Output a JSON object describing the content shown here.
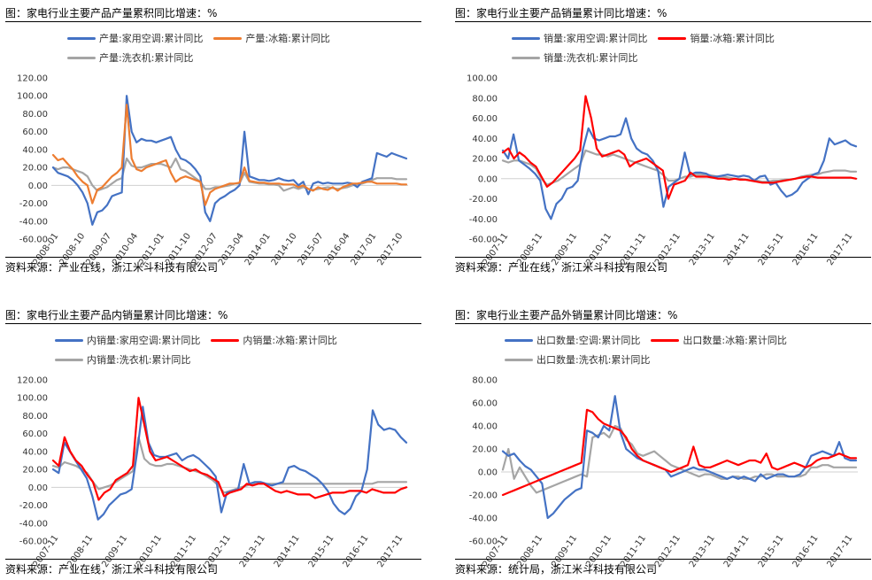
{
  "chart_data": [
    {
      "type": "line",
      "title": "图：家电行业主要产品产量累积同比增速：%",
      "source": "资料来源：产业在线，浙江米斗科技有限公司",
      "ylim": [
        -60,
        120
      ],
      "yticks": [
        "120.00",
        "100.00",
        "80.00",
        "60.00",
        "40.00",
        "20.00",
        "0.00",
        "-20.00",
        "-40.00",
        "-60.00"
      ],
      "xticks": [
        "2008-01",
        "2008-10",
        "2009-07",
        "2010-04",
        "2011-01",
        "2011-10",
        "2012-07",
        "2013-04",
        "2014-01",
        "2014-10",
        "2015-07",
        "2016-04",
        "2017-01",
        "2017-10"
      ],
      "series": [
        {
          "name": "产量:家用空调:累计同比",
          "color": "#4472C4",
          "values": [
            20,
            14,
            12,
            10,
            6,
            0,
            -8,
            -20,
            -44,
            -30,
            -28,
            -22,
            -12,
            -10,
            -8,
            100,
            60,
            48,
            52,
            50,
            50,
            48,
            50,
            52,
            54,
            40,
            30,
            28,
            24,
            18,
            10,
            -30,
            -40,
            -20,
            -15,
            -12,
            -8,
            -5,
            0,
            60,
            10,
            8,
            6,
            6,
            5,
            6,
            8,
            6,
            5,
            6,
            0,
            4,
            -10,
            2,
            4,
            2,
            3,
            2,
            2,
            2,
            3,
            2,
            -2,
            4,
            6,
            8,
            36,
            34,
            32,
            36,
            34,
            32,
            30
          ]
        },
        {
          "name": "产量:冰箱:累计同比",
          "color": "#ED7D31",
          "values": [
            34,
            28,
            30,
            24,
            18,
            10,
            4,
            0,
            -20,
            -5,
            -2,
            4,
            10,
            14,
            20,
            90,
            30,
            18,
            16,
            20,
            22,
            24,
            26,
            28,
            14,
            4,
            8,
            10,
            8,
            6,
            4,
            -22,
            -8,
            -4,
            -2,
            0,
            2,
            2,
            3,
            20,
            5,
            4,
            3,
            3,
            2,
            2,
            2,
            1,
            1,
            1,
            -2,
            0,
            -4,
            -6,
            -2,
            -4,
            -5,
            -2,
            -6,
            -2,
            0,
            2,
            2,
            3,
            4,
            4,
            2,
            2,
            2,
            2,
            2,
            1,
            1
          ]
        },
        {
          "name": "产量:洗衣机:累计同比",
          "color": "#A5A5A5",
          "values": [
            20,
            18,
            20,
            20,
            18,
            16,
            14,
            10,
            0,
            -6,
            -4,
            -2,
            2,
            6,
            8,
            30,
            22,
            20,
            20,
            22,
            24,
            24,
            24,
            22,
            20,
            30,
            18,
            16,
            12,
            8,
            4,
            -4,
            -4,
            -2,
            -2,
            -1,
            0,
            2,
            2,
            14,
            4,
            3,
            2,
            2,
            1,
            1,
            0,
            -6,
            -4,
            -2,
            -4,
            -2,
            -4,
            -5,
            -4,
            -3,
            -2,
            -3,
            -4,
            -3,
            -2,
            0,
            1,
            2,
            4,
            6,
            8,
            8,
            8,
            8,
            7,
            7,
            7
          ]
        }
      ]
    },
    {
      "type": "line",
      "title": "图：家电行业主要产品销量累计同比增速：%",
      "source": "资料来源：产业在线，浙江米斗科技有限公司",
      "ylim": [
        -60,
        100
      ],
      "yticks": [
        "100.00",
        "80.00",
        "60.00",
        "40.00",
        "20.00",
        "0.00",
        "-20.00",
        "-40.00",
        "-60.00"
      ],
      "xticks": [
        "2007-11",
        "2008-11",
        "2009-11",
        "2010-11",
        "2011-11",
        "2012-11",
        "2013-11",
        "2014-11",
        "2015-11",
        "2016-11",
        "2017-11"
      ],
      "series": [
        {
          "name": "销量:家用空调:累计同比",
          "color": "#4472C4",
          "values": [
            28,
            20,
            44,
            18,
            14,
            10,
            5,
            -2,
            -30,
            -40,
            -25,
            -20,
            -10,
            -8,
            -2,
            30,
            50,
            40,
            38,
            40,
            42,
            42,
            44,
            60,
            40,
            30,
            26,
            24,
            18,
            8,
            -28,
            -8,
            -4,
            0,
            26,
            4,
            6,
            6,
            5,
            2,
            2,
            3,
            4,
            3,
            2,
            3,
            2,
            -2,
            2,
            3,
            -6,
            -4,
            -12,
            -18,
            -16,
            -12,
            -4,
            0,
            4,
            6,
            18,
            40,
            34,
            36,
            38,
            34,
            32
          ]
        },
        {
          "name": "销量:冰箱:累计同比",
          "color": "#FF0000",
          "values": [
            26,
            30,
            20,
            26,
            22,
            16,
            12,
            2,
            -8,
            -4,
            2,
            8,
            14,
            20,
            28,
            82,
            60,
            30,
            22,
            24,
            26,
            28,
            24,
            12,
            16,
            18,
            20,
            16,
            12,
            8,
            -20,
            -6,
            -4,
            -2,
            6,
            2,
            2,
            2,
            1,
            0,
            0,
            -1,
            0,
            -1,
            -1,
            -2,
            -3,
            -4,
            -4,
            -4,
            -3,
            -2,
            -1,
            0,
            1,
            2,
            2,
            1,
            1,
            1,
            1,
            1,
            1,
            1,
            0
          ]
        },
        {
          "name": "销量:洗衣机:累计同比",
          "color": "#A5A5A5",
          "values": [
            18,
            16,
            18,
            18,
            16,
            14,
            10,
            0,
            -6,
            -4,
            -2,
            2,
            6,
            10,
            14,
            28,
            26,
            24,
            24,
            22,
            24,
            22,
            20,
            18,
            16,
            14,
            12,
            10,
            8,
            4,
            -2,
            -2,
            0,
            2,
            2,
            4,
            4,
            4,
            3,
            2,
            2,
            1,
            0,
            0,
            -1,
            -2,
            -2,
            -3,
            -3,
            -2,
            -2,
            -1,
            -1,
            0,
            2,
            3,
            4,
            4,
            6,
            7,
            8,
            8,
            8,
            7,
            7
          ]
        }
      ]
    },
    {
      "type": "line",
      "title": "图：家电行业主要产品内销量累计同比增速：%",
      "source": "资料来源：产业在线，浙江米斗科技有限公司",
      "ylim": [
        -60,
        120
      ],
      "yticks": [
        "120.00",
        "100.00",
        "80.00",
        "60.00",
        "40.00",
        "20.00",
        "0.00",
        "-20.00",
        "-40.00",
        "-60.00"
      ],
      "xticks": [
        "2007-11",
        "2008-11",
        "2009-11",
        "2010-11",
        "2011-11",
        "2012-11",
        "2013-11",
        "2014-11",
        "2015-11",
        "2016-11",
        "2017-11"
      ],
      "series": [
        {
          "name": "内销量:家用空调:累计同比",
          "color": "#4472C4",
          "values": [
            20,
            16,
            50,
            40,
            30,
            20,
            10,
            -10,
            -36,
            -30,
            -20,
            -14,
            -8,
            -6,
            -2,
            40,
            90,
            50,
            36,
            34,
            34,
            36,
            38,
            30,
            34,
            36,
            32,
            26,
            20,
            12,
            -28,
            -6,
            -4,
            -2,
            26,
            4,
            6,
            6,
            4,
            2,
            4,
            6,
            22,
            24,
            20,
            18,
            14,
            10,
            4,
            -4,
            -18,
            -26,
            -30,
            -24,
            -10,
            -4,
            20,
            86,
            70,
            64,
            66,
            64,
            56,
            50
          ]
        },
        {
          "name": "内销量:冰箱:累计同比",
          "color": "#FF0000",
          "values": [
            30,
            24,
            56,
            40,
            30,
            24,
            14,
            6,
            -14,
            -6,
            -2,
            8,
            12,
            16,
            24,
            100,
            70,
            40,
            30,
            32,
            34,
            30,
            26,
            22,
            18,
            20,
            16,
            14,
            10,
            6,
            -10,
            -6,
            -4,
            -2,
            4,
            2,
            4,
            4,
            0,
            -4,
            -6,
            -4,
            -6,
            -8,
            -8,
            -8,
            -12,
            -10,
            -8,
            -6,
            -6,
            -6,
            -4,
            -4,
            -4,
            -6,
            -2,
            -4,
            -6,
            -6,
            -6,
            -2,
            0
          ]
        },
        {
          "name": "内销量:洗衣机:累计同比",
          "color": "#A5A5A5",
          "values": [
            24,
            22,
            28,
            26,
            24,
            20,
            16,
            6,
            -2,
            0,
            2,
            6,
            10,
            14,
            18,
            56,
            32,
            26,
            24,
            24,
            26,
            26,
            24,
            22,
            20,
            18,
            16,
            12,
            8,
            2,
            -6,
            -4,
            -2,
            0,
            2,
            4,
            4,
            4,
            4,
            4,
            4,
            4,
            4,
            4,
            4,
            4,
            4,
            4,
            4,
            4,
            4,
            4,
            4,
            4,
            4,
            4,
            4,
            6,
            6,
            6,
            6,
            6,
            6
          ]
        }
      ]
    },
    {
      "type": "line",
      "title": "图：家电行业主要产品外销量累计同比增速：%",
      "source": "资料来源：统计局，浙江米斗科技有限公司",
      "ylim": [
        -60,
        80
      ],
      "yticks": [
        "80.00",
        "60.00",
        "40.00",
        "20.00",
        "0.00",
        "-20.00",
        "-40.00",
        "-60.00"
      ],
      "xticks": [
        "2007-11",
        "2008-11",
        "2009-11",
        "2010-11",
        "2011-11",
        "2012-11",
        "2013-11",
        "2014-11",
        "2015-11",
        "2016-11",
        "2017-11"
      ],
      "series": [
        {
          "name": "出口数量:空调:累计同比",
          "color": "#4472C4",
          "values": [
            18,
            14,
            16,
            10,
            5,
            2,
            -4,
            -10,
            -40,
            -36,
            -30,
            -24,
            -20,
            -16,
            -14,
            36,
            34,
            30,
            40,
            36,
            66,
            34,
            20,
            16,
            12,
            10,
            8,
            6,
            4,
            2,
            -4,
            -2,
            0,
            2,
            4,
            2,
            2,
            0,
            -2,
            -4,
            -6,
            -4,
            -6,
            -4,
            -6,
            -8,
            -2,
            -6,
            -4,
            -2,
            -2,
            -4,
            -4,
            -2,
            4,
            14,
            16,
            18,
            16,
            14,
            26,
            12,
            10,
            10
          ]
        },
        {
          "name": "出口数量:冰箱:累计同比",
          "color": "#FF0000",
          "values": [
            -20,
            -18,
            -16,
            -14,
            -12,
            -10,
            -8,
            -6,
            -4,
            -2,
            0,
            2,
            4,
            6,
            8,
            54,
            52,
            46,
            42,
            40,
            38,
            36,
            30,
            20,
            14,
            10,
            8,
            6,
            4,
            2,
            0,
            2,
            4,
            6,
            22,
            6,
            4,
            4,
            6,
            8,
            10,
            8,
            6,
            8,
            10,
            10,
            8,
            16,
            4,
            2,
            4,
            6,
            8,
            6,
            4,
            6,
            10,
            12,
            12,
            14,
            16,
            14,
            12,
            12
          ]
        },
        {
          "name": "出口数量:洗衣机:累计同比",
          "color": "#A5A5A5",
          "values": [
            2,
            20,
            -6,
            4,
            -4,
            -12,
            -18,
            -16,
            -14,
            -12,
            -10,
            -8,
            -6,
            -4,
            -2,
            -4,
            30,
            32,
            34,
            30,
            40,
            38,
            28,
            24,
            16,
            14,
            16,
            18,
            14,
            10,
            6,
            4,
            2,
            0,
            -2,
            -4,
            -2,
            -2,
            -4,
            -6,
            -6,
            -4,
            -4,
            -6,
            -6,
            -4,
            -4,
            -2,
            -2,
            -4,
            -4,
            -4,
            -4,
            -4,
            -2,
            4,
            4,
            6,
            6,
            4,
            4,
            4,
            4,
            4
          ]
        }
      ]
    }
  ]
}
